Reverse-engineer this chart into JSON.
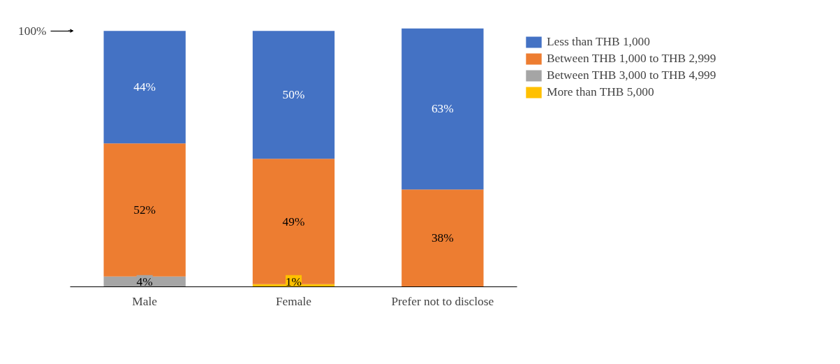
{
  "chart_data": {
    "type": "bar",
    "stacked": true,
    "categories": [
      "Male",
      "Female",
      "Prefer not to disclose"
    ],
    "series": [
      {
        "name": "More than THB 5,000",
        "color": "#ffc000",
        "values": [
          null,
          1,
          null
        ],
        "value_labels": [
          null,
          "1%",
          null
        ]
      },
      {
        "name": "Between THB 3,000 to THB 4,999",
        "color": "#a5a5a5",
        "values": [
          4,
          null,
          null
        ],
        "value_labels": [
          "4%",
          null,
          null
        ]
      },
      {
        "name": "Between THB 1,000 to THB 2,999",
        "color": "#ed7d31",
        "values": [
          52,
          49,
          38
        ],
        "value_labels": [
          "52%",
          "49%",
          "38%"
        ]
      },
      {
        "name": "Less than THB 1,000",
        "color": "#4472c4",
        "values": [
          44,
          50,
          63
        ],
        "value_labels": [
          "44%",
          "50%",
          "63%"
        ]
      }
    ],
    "ylim": [
      0,
      101
    ],
    "yticks": [
      {
        "value": 100,
        "label": "100%"
      }
    ],
    "grid": false,
    "data_labels": true,
    "legend": "top right"
  }
}
